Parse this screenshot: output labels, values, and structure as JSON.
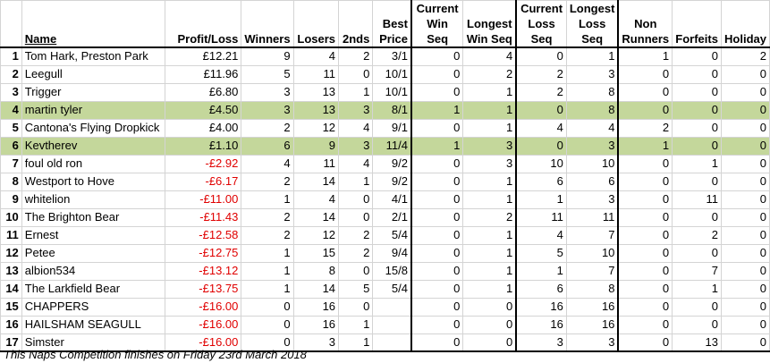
{
  "headers": {
    "name": "Name",
    "profit_loss": "Profit/Loss",
    "winners": "Winners",
    "losers": "Losers",
    "seconds": "2nds",
    "best_price": "Best Price",
    "current_win_seq": "Current Win Seq",
    "longest_win_seq": "Longest Win Seq",
    "current_loss_seq": "Current Loss Seq",
    "longest_loss_seq": "Longest Loss Seq",
    "non_runners": "Non Runners",
    "forfeits": "Forfeits",
    "holiday": "Holiday"
  },
  "highlight_color": "#c4d79b",
  "negative_color": "#e00000",
  "rows": [
    {
      "rank": "1",
      "name": "Tom Hark, Preston Park",
      "profit_loss": "£12.21",
      "negative": false,
      "highlight": false,
      "winners": "9",
      "losers": "4",
      "seconds": "2",
      "best_price": "3/1",
      "current_win_seq": "0",
      "longest_win_seq": "4",
      "current_loss_seq": "0",
      "longest_loss_seq": "1",
      "non_runners": "1",
      "forfeits": "0",
      "holiday": "2"
    },
    {
      "rank": "2",
      "name": "Leegull",
      "profit_loss": "£11.96",
      "negative": false,
      "highlight": false,
      "winners": "5",
      "losers": "11",
      "seconds": "0",
      "best_price": "10/1",
      "current_win_seq": "0",
      "longest_win_seq": "2",
      "current_loss_seq": "2",
      "longest_loss_seq": "3",
      "non_runners": "0",
      "forfeits": "0",
      "holiday": "0"
    },
    {
      "rank": "3",
      "name": "Trigger",
      "profit_loss": "£6.80",
      "negative": false,
      "highlight": false,
      "winners": "3",
      "losers": "13",
      "seconds": "1",
      "best_price": "10/1",
      "current_win_seq": "0",
      "longest_win_seq": "1",
      "current_loss_seq": "2",
      "longest_loss_seq": "8",
      "non_runners": "0",
      "forfeits": "0",
      "holiday": "0"
    },
    {
      "rank": "4",
      "name": "martin tyler",
      "profit_loss": "£4.50",
      "negative": false,
      "highlight": true,
      "winners": "3",
      "losers": "13",
      "seconds": "3",
      "best_price": "8/1",
      "current_win_seq": "1",
      "longest_win_seq": "1",
      "current_loss_seq": "0",
      "longest_loss_seq": "8",
      "non_runners": "0",
      "forfeits": "0",
      "holiday": "0"
    },
    {
      "rank": "5",
      "name": "Cantona's Flying Dropkick",
      "profit_loss": "£4.00",
      "negative": false,
      "highlight": false,
      "winners": "2",
      "losers": "12",
      "seconds": "4",
      "best_price": "9/1",
      "current_win_seq": "0",
      "longest_win_seq": "1",
      "current_loss_seq": "4",
      "longest_loss_seq": "4",
      "non_runners": "2",
      "forfeits": "0",
      "holiday": "0"
    },
    {
      "rank": "6",
      "name": "Kevtherev",
      "profit_loss": "£1.10",
      "negative": false,
      "highlight": true,
      "winners": "6",
      "losers": "9",
      "seconds": "3",
      "best_price": "11/4",
      "current_win_seq": "1",
      "longest_win_seq": "3",
      "current_loss_seq": "0",
      "longest_loss_seq": "3",
      "non_runners": "1",
      "forfeits": "0",
      "holiday": "0"
    },
    {
      "rank": "7",
      "name": "foul old ron",
      "profit_loss": "-£2.92",
      "negative": true,
      "highlight": false,
      "winners": "4",
      "losers": "11",
      "seconds": "4",
      "best_price": "9/2",
      "current_win_seq": "0",
      "longest_win_seq": "3",
      "current_loss_seq": "10",
      "longest_loss_seq": "10",
      "non_runners": "0",
      "forfeits": "1",
      "holiday": "0"
    },
    {
      "rank": "8",
      "name": "Westport to Hove",
      "profit_loss": "-£6.17",
      "negative": true,
      "highlight": false,
      "winners": "2",
      "losers": "14",
      "seconds": "1",
      "best_price": "9/2",
      "current_win_seq": "0",
      "longest_win_seq": "1",
      "current_loss_seq": "6",
      "longest_loss_seq": "6",
      "non_runners": "0",
      "forfeits": "0",
      "holiday": "0"
    },
    {
      "rank": "9",
      "name": "whitelion",
      "profit_loss": "-£11.00",
      "negative": true,
      "highlight": false,
      "winners": "1",
      "losers": "4",
      "seconds": "0",
      "best_price": "4/1",
      "current_win_seq": "0",
      "longest_win_seq": "1",
      "current_loss_seq": "1",
      "longest_loss_seq": "3",
      "non_runners": "0",
      "forfeits": "11",
      "holiday": "0"
    },
    {
      "rank": "10",
      "name": "The Brighton Bear",
      "profit_loss": "-£11.43",
      "negative": true,
      "highlight": false,
      "winners": "2",
      "losers": "14",
      "seconds": "0",
      "best_price": "2/1",
      "current_win_seq": "0",
      "longest_win_seq": "2",
      "current_loss_seq": "11",
      "longest_loss_seq": "11",
      "non_runners": "0",
      "forfeits": "0",
      "holiday": "0"
    },
    {
      "rank": "11",
      "name": "Ernest",
      "profit_loss": "-£12.58",
      "negative": true,
      "highlight": false,
      "winners": "2",
      "losers": "12",
      "seconds": "2",
      "best_price": "5/4",
      "current_win_seq": "0",
      "longest_win_seq": "1",
      "current_loss_seq": "4",
      "longest_loss_seq": "7",
      "non_runners": "0",
      "forfeits": "2",
      "holiday": "0"
    },
    {
      "rank": "12",
      "name": "Petee",
      "profit_loss": "-£12.75",
      "negative": true,
      "highlight": false,
      "winners": "1",
      "losers": "15",
      "seconds": "2",
      "best_price": "9/4",
      "current_win_seq": "0",
      "longest_win_seq": "1",
      "current_loss_seq": "5",
      "longest_loss_seq": "10",
      "non_runners": "0",
      "forfeits": "0",
      "holiday": "0"
    },
    {
      "rank": "13",
      "name": "albion534",
      "profit_loss": "-£13.12",
      "negative": true,
      "highlight": false,
      "winners": "1",
      "losers": "8",
      "seconds": "0",
      "best_price": "15/8",
      "current_win_seq": "0",
      "longest_win_seq": "1",
      "current_loss_seq": "1",
      "longest_loss_seq": "7",
      "non_runners": "0",
      "forfeits": "7",
      "holiday": "0"
    },
    {
      "rank": "14",
      "name": "The Larkfield Bear",
      "profit_loss": "-£13.75",
      "negative": true,
      "highlight": false,
      "winners": "1",
      "losers": "14",
      "seconds": "5",
      "best_price": "5/4",
      "current_win_seq": "0",
      "longest_win_seq": "1",
      "current_loss_seq": "6",
      "longest_loss_seq": "8",
      "non_runners": "0",
      "forfeits": "1",
      "holiday": "0"
    },
    {
      "rank": "15",
      "name": "CHAPPERS",
      "profit_loss": "-£16.00",
      "negative": true,
      "highlight": false,
      "winners": "0",
      "losers": "16",
      "seconds": "0",
      "best_price": "",
      "current_win_seq": "0",
      "longest_win_seq": "0",
      "current_loss_seq": "16",
      "longest_loss_seq": "16",
      "non_runners": "0",
      "forfeits": "0",
      "holiday": "0"
    },
    {
      "rank": "16",
      "name": "HAILSHAM SEAGULL",
      "profit_loss": "-£16.00",
      "negative": true,
      "highlight": false,
      "winners": "0",
      "losers": "16",
      "seconds": "1",
      "best_price": "",
      "current_win_seq": "0",
      "longest_win_seq": "0",
      "current_loss_seq": "16",
      "longest_loss_seq": "16",
      "non_runners": "0",
      "forfeits": "0",
      "holiday": "0"
    },
    {
      "rank": "17",
      "name": "Simster",
      "profit_loss": "-£16.00",
      "negative": true,
      "highlight": false,
      "winners": "0",
      "losers": "3",
      "seconds": "1",
      "best_price": "",
      "current_win_seq": "0",
      "longest_win_seq": "0",
      "current_loss_seq": "3",
      "longest_loss_seq": "3",
      "non_runners": "0",
      "forfeits": "13",
      "holiday": "0"
    }
  ],
  "footer_note": "This Naps Competition finishes on Friday 23rd March 2018"
}
